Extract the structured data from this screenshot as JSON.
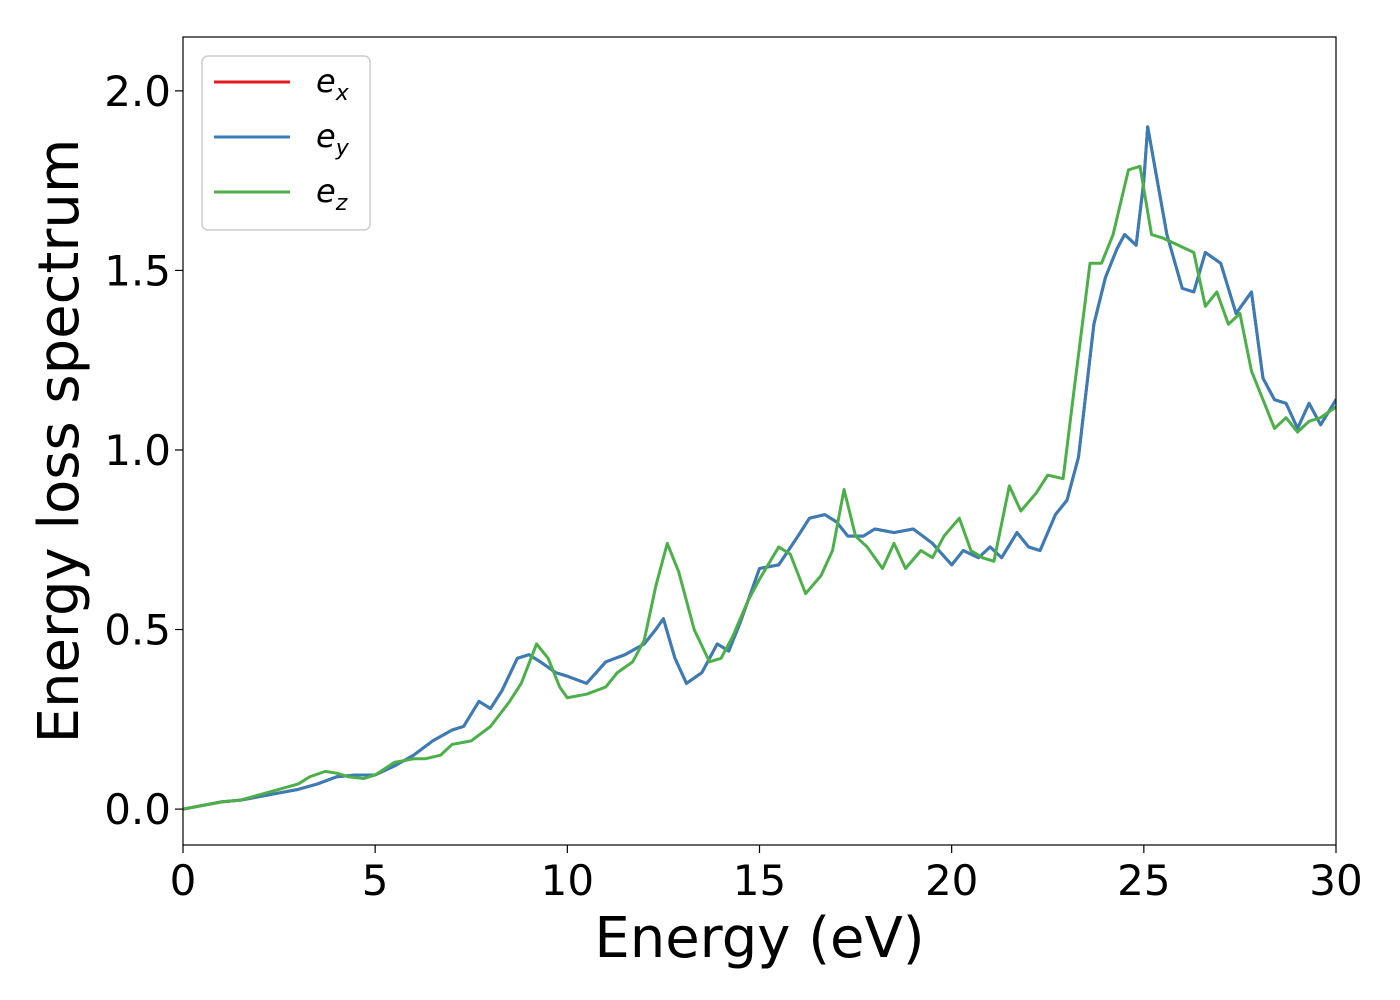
{
  "chart_data": {
    "type": "line",
    "xlabel": "Energy (eV)",
    "ylabel": "Energy loss spectrum",
    "xlim": [
      0,
      30
    ],
    "ylim": [
      -0.1,
      2.15
    ],
    "xticks": [
      0,
      5,
      10,
      15,
      20,
      25,
      30
    ],
    "yticks": [
      0.0,
      0.5,
      1.0,
      1.5,
      2.0
    ],
    "xtick_labels": [
      "0",
      "5",
      "10",
      "15",
      "20",
      "25",
      "30"
    ],
    "ytick_labels": [
      "0.0",
      "0.5",
      "1.0",
      "1.5",
      "2.0"
    ],
    "grid": false,
    "legend_position": "top-left",
    "series": [
      {
        "name": "e_x",
        "legend_base": "e",
        "legend_sub": "x",
        "color": "#e41a1c",
        "x": [
          0,
          0.5,
          1,
          1.5,
          2,
          2.5,
          3,
          3.5,
          4,
          4.5,
          5,
          5.5,
          6,
          6.5,
          7,
          7.3,
          7.7,
          8,
          8.3,
          8.7,
          9,
          9.3,
          9.7,
          10,
          10.5,
          11,
          11.5,
          12,
          12.3,
          12.5,
          12.8,
          13.1,
          13.5,
          13.9,
          14.2,
          14.5,
          15,
          15.5,
          16,
          16.3,
          16.7,
          17,
          17.3,
          17.7,
          18,
          18.5,
          19,
          19.5,
          20,
          20.3,
          20.7,
          21,
          21.3,
          21.7,
          22,
          22.3,
          22.7,
          23,
          23.3,
          23.7,
          24,
          24.3,
          24.5,
          24.8,
          25,
          25.1,
          25.3,
          25.6,
          26,
          26.3,
          26.6,
          27,
          27.4,
          27.8,
          28.1,
          28.4,
          28.7,
          29,
          29.3,
          29.6,
          30
        ],
        "y": [
          0.0,
          0.01,
          0.02,
          0.025,
          0.035,
          0.045,
          0.055,
          0.07,
          0.09,
          0.095,
          0.095,
          0.12,
          0.15,
          0.19,
          0.22,
          0.23,
          0.3,
          0.28,
          0.33,
          0.42,
          0.43,
          0.41,
          0.38,
          0.37,
          0.35,
          0.41,
          0.43,
          0.46,
          0.5,
          0.53,
          0.42,
          0.35,
          0.38,
          0.46,
          0.44,
          0.52,
          0.67,
          0.68,
          0.76,
          0.81,
          0.82,
          0.8,
          0.76,
          0.76,
          0.78,
          0.77,
          0.78,
          0.74,
          0.68,
          0.72,
          0.7,
          0.73,
          0.7,
          0.77,
          0.73,
          0.72,
          0.82,
          0.86,
          0.98,
          1.35,
          1.48,
          1.56,
          1.6,
          1.57,
          1.75,
          1.9,
          1.78,
          1.6,
          1.45,
          1.44,
          1.55,
          1.52,
          1.38,
          1.44,
          1.2,
          1.14,
          1.13,
          1.06,
          1.13,
          1.07,
          1.14
        ]
      },
      {
        "name": "e_y",
        "legend_base": "e",
        "legend_sub": "y",
        "color": "#377eb8",
        "x": [
          0,
          0.5,
          1,
          1.5,
          2,
          2.5,
          3,
          3.5,
          4,
          4.5,
          5,
          5.5,
          6,
          6.5,
          7,
          7.3,
          7.7,
          8,
          8.3,
          8.7,
          9,
          9.3,
          9.7,
          10,
          10.5,
          11,
          11.5,
          12,
          12.3,
          12.5,
          12.8,
          13.1,
          13.5,
          13.9,
          14.2,
          14.5,
          15,
          15.5,
          16,
          16.3,
          16.7,
          17,
          17.3,
          17.7,
          18,
          18.5,
          19,
          19.5,
          20,
          20.3,
          20.7,
          21,
          21.3,
          21.7,
          22,
          22.3,
          22.7,
          23,
          23.3,
          23.7,
          24,
          24.3,
          24.5,
          24.8,
          25,
          25.1,
          25.3,
          25.6,
          26,
          26.3,
          26.6,
          27,
          27.4,
          27.8,
          28.1,
          28.4,
          28.7,
          29,
          29.3,
          29.6,
          30
        ],
        "y": [
          0.0,
          0.01,
          0.02,
          0.025,
          0.035,
          0.045,
          0.055,
          0.07,
          0.09,
          0.095,
          0.095,
          0.12,
          0.15,
          0.19,
          0.22,
          0.23,
          0.3,
          0.28,
          0.33,
          0.42,
          0.43,
          0.41,
          0.38,
          0.37,
          0.35,
          0.41,
          0.43,
          0.46,
          0.5,
          0.53,
          0.42,
          0.35,
          0.38,
          0.46,
          0.44,
          0.52,
          0.67,
          0.68,
          0.76,
          0.81,
          0.82,
          0.8,
          0.76,
          0.76,
          0.78,
          0.77,
          0.78,
          0.74,
          0.68,
          0.72,
          0.7,
          0.73,
          0.7,
          0.77,
          0.73,
          0.72,
          0.82,
          0.86,
          0.98,
          1.35,
          1.48,
          1.56,
          1.6,
          1.57,
          1.75,
          1.9,
          1.78,
          1.6,
          1.45,
          1.44,
          1.55,
          1.52,
          1.38,
          1.44,
          1.2,
          1.14,
          1.13,
          1.06,
          1.13,
          1.07,
          1.14
        ]
      },
      {
        "name": "e_z",
        "legend_base": "e",
        "legend_sub": "z",
        "color": "#4daf4a",
        "x": [
          0,
          0.5,
          1,
          1.5,
          2,
          2.5,
          3,
          3.3,
          3.7,
          4,
          4.3,
          4.7,
          5,
          5.5,
          6,
          6.3,
          6.7,
          7,
          7.5,
          8,
          8.5,
          8.8,
          9.2,
          9.5,
          9.8,
          10,
          10.5,
          11,
          11.3,
          11.7,
          12,
          12.3,
          12.6,
          12.9,
          13.3,
          13.7,
          14,
          14.3,
          14.7,
          15,
          15.5,
          15.8,
          16.2,
          16.6,
          16.9,
          17.2,
          17.5,
          17.8,
          18.2,
          18.5,
          18.8,
          19.2,
          19.5,
          19.8,
          20.2,
          20.5,
          20.8,
          21.1,
          21.5,
          21.8,
          22.2,
          22.5,
          22.9,
          23.2,
          23.6,
          23.9,
          24.2,
          24.6,
          24.9,
          25.2,
          25.5,
          25.9,
          26.3,
          26.6,
          26.9,
          27.2,
          27.5,
          27.8,
          28.1,
          28.4,
          28.7,
          29,
          29.3,
          29.6,
          30
        ],
        "y": [
          0.0,
          0.01,
          0.02,
          0.025,
          0.04,
          0.055,
          0.07,
          0.09,
          0.105,
          0.1,
          0.09,
          0.085,
          0.095,
          0.13,
          0.14,
          0.14,
          0.15,
          0.18,
          0.19,
          0.23,
          0.3,
          0.35,
          0.46,
          0.42,
          0.34,
          0.31,
          0.32,
          0.34,
          0.38,
          0.41,
          0.47,
          0.62,
          0.74,
          0.66,
          0.5,
          0.41,
          0.42,
          0.48,
          0.58,
          0.64,
          0.73,
          0.71,
          0.6,
          0.65,
          0.72,
          0.89,
          0.76,
          0.73,
          0.67,
          0.74,
          0.67,
          0.72,
          0.7,
          0.76,
          0.81,
          0.72,
          0.7,
          0.69,
          0.9,
          0.83,
          0.88,
          0.93,
          0.92,
          1.18,
          1.52,
          1.52,
          1.6,
          1.78,
          1.79,
          1.6,
          1.59,
          1.57,
          1.55,
          1.4,
          1.44,
          1.35,
          1.38,
          1.22,
          1.14,
          1.06,
          1.09,
          1.05,
          1.08,
          1.09,
          1.12
        ]
      }
    ]
  }
}
